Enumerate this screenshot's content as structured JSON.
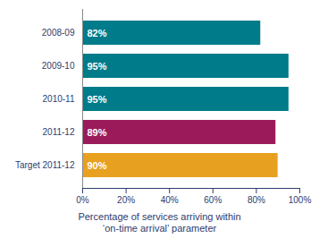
{
  "chart_data": {
    "type": "bar",
    "orientation": "horizontal",
    "categories": [
      "2008-09",
      "2009-10",
      "2010-11",
      "2011-12",
      "Target 2011-12"
    ],
    "values": [
      82,
      95,
      95,
      89,
      90
    ],
    "colors": [
      "#007B8A",
      "#007B8A",
      "#007B8A",
      "#9B1B5A",
      "#E8A020"
    ],
    "data_labels": true,
    "value_labels": [
      "82%",
      "95%",
      "95%",
      "89%",
      "90%"
    ],
    "xlabel": "Percentage of services arriving within\n‘on-time arrival’ parameter",
    "xlim": [
      0,
      100
    ],
    "xticks": [
      {
        "value": 0,
        "label": "0%"
      },
      {
        "value": 20,
        "label": "20%"
      },
      {
        "value": 40,
        "label": "40%"
      },
      {
        "value": 60,
        "label": "60%"
      },
      {
        "value": 80,
        "label": "80%"
      },
      {
        "value": 100,
        "label": "100%"
      }
    ],
    "grid": false
  }
}
